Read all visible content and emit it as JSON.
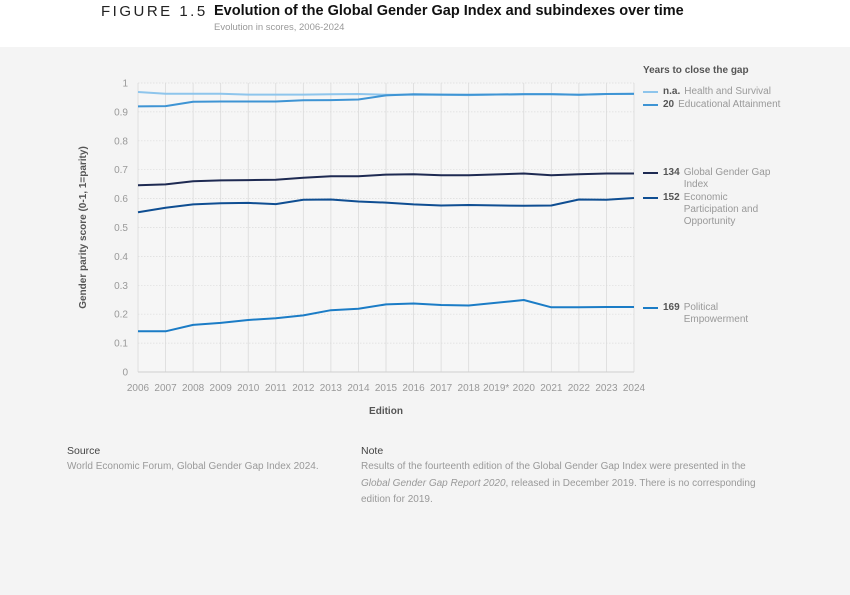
{
  "header": {
    "figure": "FIGURE 1.5",
    "title": "Evolution of the Global Gender Gap Index and subindexes over time",
    "subtitle": "Evolution in scores, 2006-2024"
  },
  "chart_data": {
    "type": "line",
    "xlabel": "Edition",
    "ylabel": "Gender parity score (0-1, 1=parity)",
    "ylim": [
      0,
      1
    ],
    "yticks": [
      "0",
      "0.1",
      "0.2",
      "0.3",
      "0.4",
      "0.5",
      "0.6",
      "0.7",
      "0.8",
      "0.9",
      "1"
    ],
    "categories": [
      "2006",
      "2007",
      "2008",
      "2009",
      "2010",
      "2011",
      "2012",
      "2013",
      "2014",
      "2015",
      "2016",
      "2017",
      "2018",
      "2019*",
      "2020",
      "2021",
      "2022",
      "2023",
      "2024"
    ],
    "grid": "vertical lines per edition, dotted horizontal",
    "legend_title": "Years to close the gap",
    "legend_placement": "right",
    "series": [
      {
        "name": "Health and Survival",
        "years": "n.a.",
        "color": "#8ec5ec",
        "values": [
          0.969,
          0.963,
          0.963,
          0.963,
          0.96,
          0.96,
          0.96,
          0.961,
          0.962,
          0.959,
          0.959,
          0.959,
          0.958,
          null,
          0.962,
          0.962,
          0.959,
          0.962,
          0.962
        ]
      },
      {
        "name": "Educational Attainment",
        "years": "20",
        "color": "#3e94d4",
        "values": [
          0.919,
          0.92,
          0.935,
          0.936,
          0.936,
          0.936,
          0.94,
          0.941,
          0.943,
          0.957,
          0.961,
          0.96,
          0.959,
          null,
          0.961,
          0.961,
          0.959,
          0.962,
          0.963
        ]
      },
      {
        "name": "Global Gender Gap Index",
        "years": "134",
        "color": "#1e2a52",
        "values": [
          0.646,
          0.649,
          0.66,
          0.663,
          0.664,
          0.665,
          0.672,
          0.677,
          0.677,
          0.683,
          0.684,
          0.681,
          0.681,
          null,
          0.687,
          0.681,
          0.684,
          0.687,
          0.687
        ]
      },
      {
        "name": "Economic Participation and Opportunity",
        "years": "152",
        "color": "#0f4e92",
        "values": [
          0.553,
          0.568,
          0.58,
          0.584,
          0.585,
          0.581,
          0.596,
          0.597,
          0.59,
          0.586,
          0.58,
          0.576,
          0.578,
          null,
          0.575,
          0.576,
          0.597,
          0.596,
          0.602
        ]
      },
      {
        "name": "Political Empowerment",
        "years": "169",
        "color": "#1b7cc6",
        "values": [
          0.141,
          0.141,
          0.163,
          0.17,
          0.18,
          0.186,
          0.196,
          0.214,
          0.219,
          0.234,
          0.237,
          0.232,
          0.23,
          null,
          0.249,
          0.224,
          0.224,
          0.225,
          0.225
        ]
      }
    ]
  },
  "footer": {
    "source_heading": "Source",
    "source_text": "World Economic Forum, Global Gender Gap Index 2024.",
    "note_heading": "Note",
    "note_text_1": "Results of the fourteenth edition of the Global Gender Gap Index were presented in the ",
    "note_italic": "Global Gender Gap Report 2020",
    "note_text_2": ", released in December 2019. There is no corresponding edition for 2019."
  }
}
